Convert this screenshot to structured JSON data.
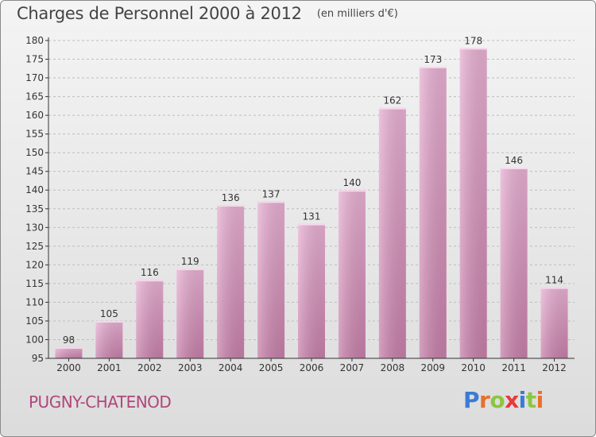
{
  "title": "Charges de Personnel 2000 à 2012",
  "subtitle": "(en milliers d'€)",
  "place": "PUGNY-CHATENOD",
  "logo": {
    "text": "Proxiti",
    "letter_colors": [
      "#3a7bd5",
      "#e8702a",
      "#8cc63f",
      "#e83a3a",
      "#3a7bd5",
      "#8cc63f",
      "#e8702a"
    ]
  },
  "colors": {
    "bar_light": "#e8b0d3",
    "bar_dark": "#c77fa9",
    "axis": "#333333",
    "grid": "#bdbdbd",
    "text": "#333333"
  },
  "chart_data": {
    "type": "bar",
    "title": "Charges de Personnel 2000 à 2012",
    "subtitle": "(en milliers d'€)",
    "categories": [
      "2000",
      "2001",
      "2002",
      "2003",
      "2004",
      "2005",
      "2006",
      "2007",
      "2008",
      "2009",
      "2010",
      "2011",
      "2012"
    ],
    "values": [
      98,
      105,
      116,
      119,
      136,
      137,
      131,
      140,
      162,
      173,
      178,
      146,
      114
    ],
    "ylim": [
      95,
      180
    ],
    "yticks": [
      95,
      100,
      105,
      110,
      115,
      120,
      125,
      130,
      135,
      140,
      145,
      150,
      155,
      160,
      165,
      170,
      175,
      180
    ],
    "grid": true,
    "data_labels": true
  }
}
